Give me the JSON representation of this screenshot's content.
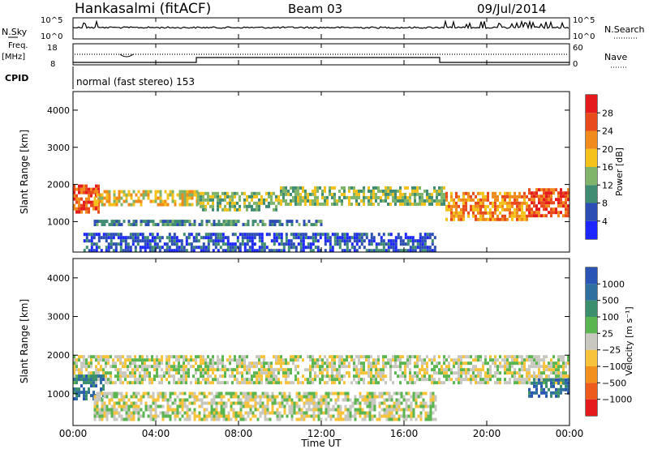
{
  "header": {
    "station": "Hankasalmi (fitACF)",
    "beam": "Beam 03",
    "date": "09/Jul/2014"
  },
  "panels": {
    "nsky": {
      "label": "N.Sky",
      "top_tick": "10^5",
      "bottom_tick": "10^0"
    },
    "nsearch": {
      "label": "N.Search",
      "top_tick": "10^5",
      "bottom_tick": "10^0"
    },
    "freq": {
      "label_line1": "Freq.",
      "label_line2": "[MHz]",
      "top_tick": "18",
      "bottom_tick": "8"
    },
    "nave": {
      "label": "Nave",
      "top_tick": "60",
      "bottom_tick": "0"
    },
    "cpid": {
      "label": "CPID",
      "text": "normal (fast stereo) 153"
    }
  },
  "chart_data": [
    {
      "type": "heatmap",
      "name": "power",
      "ylabel": "Slant Range [km]",
      "xlabel": "",
      "ylim": [
        180,
        4500
      ],
      "yticks": [
        "1000",
        "2000",
        "3000",
        "4000"
      ],
      "colorbar": {
        "label": "Power [dB]",
        "ticks": [
          "4",
          "8",
          "12",
          "16",
          "20",
          "24",
          "28"
        ],
        "colors": [
          "#1e26ff",
          "#2c4db3",
          "#3f8c73",
          "#7fb46a",
          "#f4c21a",
          "#f18a1d",
          "#e84a1c",
          "#e41a1c"
        ]
      },
      "bands": [
        {
          "x0": 0.0,
          "x1": 1.2,
          "y0": 1300,
          "y1": 2000,
          "level": 6
        },
        {
          "x0": 1.0,
          "x1": 6.0,
          "y0": 1450,
          "y1": 1850,
          "level": 4
        },
        {
          "x0": 6.0,
          "x1": 10.0,
          "y0": 1350,
          "y1": 1800,
          "level": 3
        },
        {
          "x0": 10.0,
          "x1": 18.0,
          "y0": 1500,
          "y1": 1950,
          "level": 3
        },
        {
          "x0": 18.0,
          "x1": 22.0,
          "y0": 1100,
          "y1": 1800,
          "level": 5
        },
        {
          "x0": 22.0,
          "x1": 24.0,
          "y0": 1200,
          "y1": 1900,
          "level": 6
        },
        {
          "x0": 1.0,
          "x1": 12.0,
          "y0": 900,
          "y1": 1050,
          "level": 2
        },
        {
          "x0": 0.5,
          "x1": 17.5,
          "y0": 250,
          "y1": 700,
          "level": 1
        }
      ]
    },
    {
      "type": "heatmap",
      "name": "velocity",
      "ylabel": "Slant Range [km]",
      "xlabel": "Time UT",
      "ylim": [
        180,
        4500
      ],
      "yticks": [
        "1000",
        "2000",
        "3000",
        "4000"
      ],
      "colorbar": {
        "label": "Velocity [m s⁻¹]",
        "ticks": [
          "1000",
          "500",
          "100",
          "25",
          "−25",
          "−100",
          "−500",
          "−1000"
        ],
        "colors": [
          "#2b55b5",
          "#2f6f9f",
          "#3b8f6c",
          "#5bb651",
          "#c8c8c0",
          "#f6c33b",
          "#f2901e",
          "#ee5a1c",
          "#e41a1c"
        ]
      },
      "bands": [
        {
          "x0": 0.0,
          "x1": 24.0,
          "y0": 1300,
          "y1": 2000,
          "level": 4
        },
        {
          "x0": 0.0,
          "x1": 1.5,
          "y0": 900,
          "y1": 1500,
          "level": 1
        },
        {
          "x0": 22.0,
          "x1": 24.0,
          "y0": 900,
          "y1": 1400,
          "level": 1
        },
        {
          "x0": 1.0,
          "x1": 17.5,
          "y0": 300,
          "y1": 1050,
          "level": 4
        }
      ]
    }
  ],
  "x_axis": {
    "ticks": [
      "00:00",
      "04:00",
      "08:00",
      "12:00",
      "16:00",
      "20:00",
      "00:00"
    ],
    "label": "Time UT"
  }
}
